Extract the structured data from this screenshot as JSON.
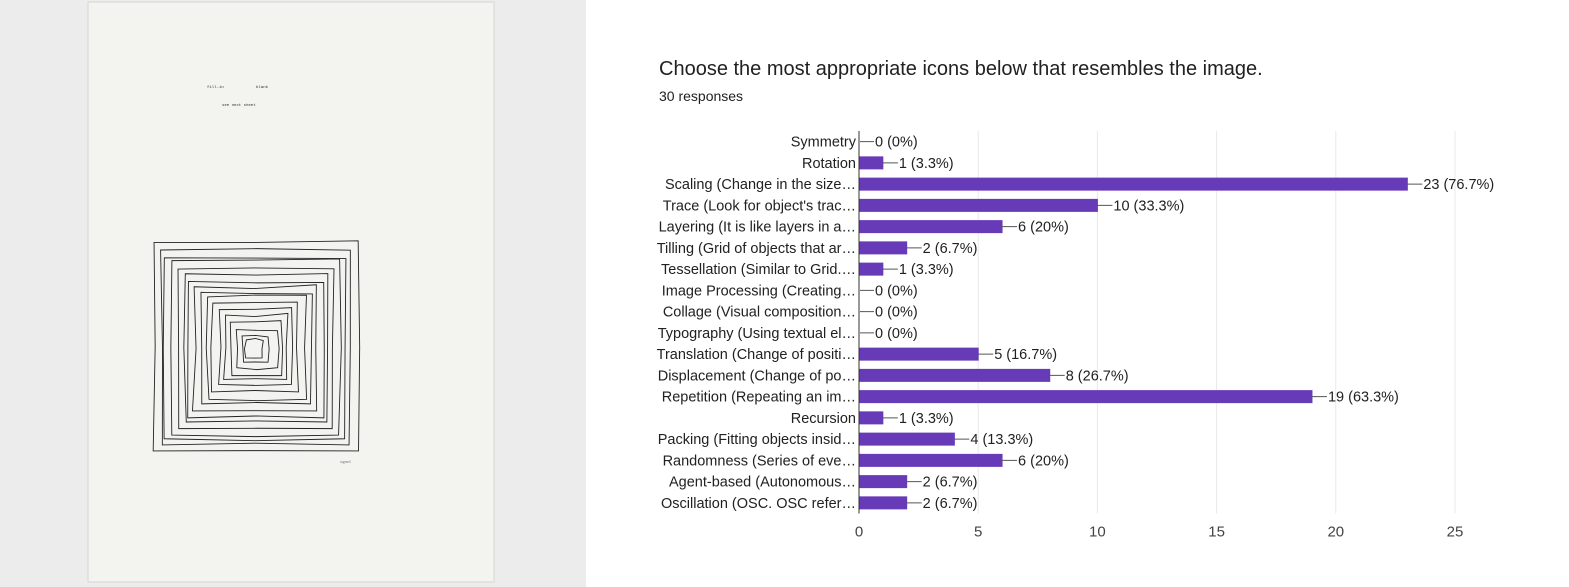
{
  "artwork": {
    "caption_left": "fill-in",
    "caption_right": "blank",
    "caption_center": "see next sheet",
    "signature": "signed"
  },
  "survey": {
    "question": "Choose the most appropriate icons below that resembles the image.",
    "responses": "30 responses"
  },
  "colors": {
    "bar": "#673ab7",
    "grid": "#e8e8e8",
    "axis": "#333333",
    "text": "#212121"
  },
  "chart_data": {
    "type": "bar",
    "orientation": "horizontal",
    "title": "Choose the most appropriate icons below that resembles the image.",
    "subtitle": "30 responses",
    "categories": [
      "Symmetry",
      "Rotation",
      "Scaling (Change in the size…",
      "Trace (Look for object's trac…",
      "Layering (It is like layers in a…",
      "Tilling (Grid of objects that ar…",
      "Tessellation (Similar to Grid.…",
      "Image Processing (Creating…",
      "Collage (Visual composition…",
      "Typography (Using textual el…",
      "Translation (Change of positi…",
      "Displacement (Change of po…",
      "Repetition (Repeating an im…",
      "Recursion",
      "Packing (Fitting objects insid…",
      "Randomness (Series of eve…",
      "Agent-based (Autonomous…",
      "Oscillation (OSC. OSC refer…"
    ],
    "values": [
      0,
      1,
      23,
      10,
      6,
      2,
      1,
      0,
      0,
      0,
      5,
      8,
      19,
      1,
      4,
      6,
      2,
      2
    ],
    "value_labels": [
      "0 (0%)",
      "1 (3.3%)",
      "23 (76.7%)",
      "10 (33.3%)",
      "6 (20%)",
      "2 (6.7%)",
      "1 (3.3%)",
      "0 (0%)",
      "0 (0%)",
      "0 (0%)",
      "5 (16.7%)",
      "8 (26.7%)",
      "19 (63.3%)",
      "1 (3.3%)",
      "4 (13.3%)",
      "6 (20%)",
      "2 (6.7%)",
      "2 (6.7%)"
    ],
    "xlim": [
      0,
      25
    ],
    "xticks": [
      "0",
      "5",
      "10",
      "15",
      "20",
      "25"
    ],
    "grid": true,
    "xlabel": "",
    "ylabel": ""
  }
}
